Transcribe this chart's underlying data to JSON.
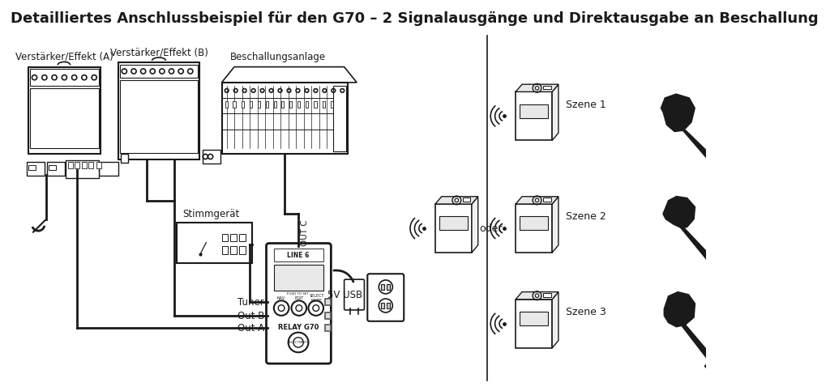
{
  "title": "Detailliertes Anschlussbeispiel für den G70 – 2 Signalausgänge und Direktausgabe an Beschallung",
  "title_fontsize": 13,
  "title_fontweight": "bold",
  "bg_color": "#ffffff",
  "fg_color": "#1a1a1a",
  "labels": {
    "amp_a": "Verstärker/Effekt (A)",
    "amp_b": "Verstärker/Effekt (B)",
    "pa": "Beschallungsanlage",
    "tuner_label": "Stimmgerät",
    "usb": "5V USB",
    "oder": "oder",
    "out_a": "Out A",
    "out_b": "Out B",
    "tuner_out": "Tuner",
    "out_c": "OUT C",
    "szene1": "Szene 1",
    "szene2": "Szene 2",
    "szene3": "Szene 3"
  }
}
